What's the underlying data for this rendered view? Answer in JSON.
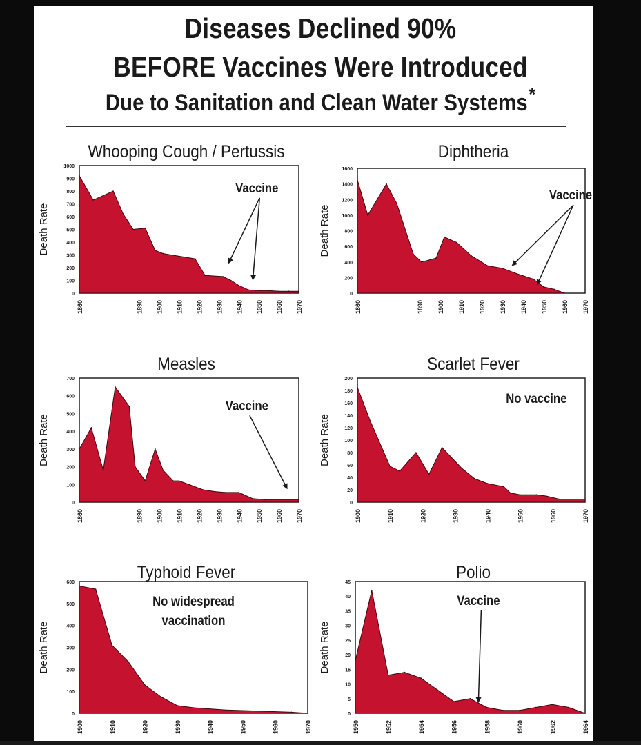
{
  "header": {
    "line1": "Diseases Declined 90%",
    "line2": "BEFORE Vaccines Were Introduced",
    "line3": "Due to Sanitation and Clean Water Systems",
    "asterisk": "*"
  },
  "colors": {
    "fill": "#c4122f",
    "stroke": "#3a0a10",
    "text": "#1a1a1a"
  },
  "chart_data": [
    {
      "type": "area",
      "title": "Whooping Cough / Pertussis",
      "ylabel": "Death Rate",
      "ylim": [
        0,
        1000
      ],
      "yticks": [
        0,
        100,
        200,
        300,
        400,
        500,
        600,
        700,
        800,
        900,
        1000
      ],
      "xlim": [
        1860,
        1970
      ],
      "xticks": [
        1860,
        1890,
        1900,
        1910,
        1920,
        1930,
        1940,
        1950,
        1960,
        1970
      ],
      "x": [
        1860,
        1867,
        1877,
        1882,
        1887,
        1893,
        1898,
        1902,
        1910,
        1918,
        1923,
        1927,
        1932,
        1936,
        1940,
        1945,
        1950,
        1955,
        1960,
        1965,
        1970
      ],
      "y": [
        920,
        730,
        800,
        620,
        500,
        510,
        335,
        310,
        290,
        270,
        140,
        135,
        130,
        100,
        60,
        25,
        20,
        20,
        15,
        15,
        15
      ],
      "annotation": {
        "text": "Vaccine",
        "x": 1949,
        "y": 790,
        "arrows": [
          [
            1935,
            240
          ],
          [
            1947,
            110
          ]
        ]
      }
    },
    {
      "type": "area",
      "title": "Diphtheria",
      "ylabel": "Death Rate",
      "ylim": [
        0,
        1600
      ],
      "yticks": [
        0,
        200,
        400,
        600,
        800,
        1000,
        1200,
        1400,
        1600
      ],
      "xlim": [
        1860,
        1970
      ],
      "xticks": [
        1860,
        1890,
        1900,
        1910,
        1920,
        1930,
        1940,
        1950,
        1960,
        1970
      ],
      "x": [
        1860,
        1865,
        1874,
        1879,
        1887,
        1891,
        1898,
        1902,
        1908,
        1915,
        1923,
        1930,
        1937,
        1945,
        1950,
        1955,
        1958,
        1960
      ],
      "y": [
        1450,
        1000,
        1400,
        1150,
        500,
        400,
        450,
        720,
        650,
        480,
        350,
        320,
        250,
        180,
        80,
        50,
        20,
        0
      ],
      "annotation": {
        "text": "Vaccine",
        "x": 1963,
        "y": 1200,
        "arrows": [
          [
            1935,
            360
          ],
          [
            1947,
            120
          ]
        ]
      }
    },
    {
      "type": "area",
      "title": "Measles",
      "ylabel": "Death Rate",
      "ylim": [
        0,
        700
      ],
      "yticks": [
        0,
        100,
        200,
        300,
        400,
        500,
        600,
        700
      ],
      "xlim": [
        1860,
        1970
      ],
      "xticks": [
        1860,
        1890,
        1900,
        1910,
        1920,
        1930,
        1940,
        1950,
        1960,
        1970
      ],
      "x": [
        1860,
        1866,
        1872,
        1878,
        1885,
        1888,
        1893,
        1898,
        1902,
        1907,
        1910,
        1915,
        1922,
        1928,
        1933,
        1940,
        1947,
        1953,
        1960,
        1970
      ],
      "y": [
        300,
        420,
        180,
        650,
        540,
        200,
        120,
        300,
        180,
        120,
        120,
        100,
        70,
        60,
        55,
        55,
        20,
        15,
        15,
        15
      ],
      "annotation": {
        "text": "Vaccine",
        "x": 1944,
        "y": 520,
        "arrows": [
          [
            1964,
            80
          ]
        ]
      }
    },
    {
      "type": "area",
      "title": "Scarlet Fever",
      "ylabel": "Death Rate",
      "ylim": [
        0,
        200
      ],
      "yticks": [
        0,
        20,
        40,
        60,
        80,
        100,
        120,
        140,
        160,
        180,
        200
      ],
      "xlim": [
        1900,
        1970
      ],
      "xticks": [
        1900,
        1910,
        1920,
        1930,
        1940,
        1950,
        1960,
        1970
      ],
      "x": [
        1900,
        1904,
        1910,
        1913,
        1918,
        1922,
        1926,
        1932,
        1936,
        1940,
        1945,
        1947,
        1950,
        1955,
        1958,
        1962,
        1970
      ],
      "y": [
        185,
        130,
        58,
        50,
        80,
        45,
        88,
        55,
        38,
        30,
        25,
        15,
        12,
        12,
        10,
        5,
        5
      ],
      "annotation": {
        "text": "No vaccine",
        "x": 1955,
        "y": 160
      }
    },
    {
      "type": "area",
      "title": "Typhoid Fever",
      "ylabel": "Death Rate",
      "ylim": [
        0,
        600
      ],
      "yticks": [
        0,
        100,
        200,
        300,
        400,
        500,
        600
      ],
      "xlim": [
        1900,
        1970
      ],
      "xticks": [
        1900,
        1910,
        1920,
        1930,
        1940,
        1950,
        1960,
        1970
      ],
      "x": [
        1900,
        1905,
        1910,
        1915,
        1920,
        1925,
        1930,
        1935,
        1945,
        1955,
        1965,
        1970
      ],
      "y": [
        580,
        565,
        310,
        235,
        130,
        75,
        35,
        25,
        15,
        10,
        5,
        0
      ],
      "annotation": {
        "text": "No widespread",
        "text2": "vaccination",
        "x": 1935,
        "y": 490
      }
    },
    {
      "type": "area",
      "title": "Polio",
      "ylabel": "Death Rate",
      "ylim": [
        0,
        45
      ],
      "yticks": [
        0,
        5,
        10,
        15,
        20,
        25,
        30,
        35,
        40,
        45
      ],
      "xlim": [
        1950,
        1964
      ],
      "xticks": [
        1950,
        1952,
        1954,
        1956,
        1958,
        1960,
        1962,
        1964
      ],
      "x": [
        1950,
        1951,
        1952,
        1953,
        1954,
        1955,
        1956,
        1957,
        1958,
        1959,
        1960,
        1961,
        1962,
        1963,
        1964
      ],
      "y": [
        18,
        42,
        13,
        14,
        12,
        8,
        4,
        5,
        2,
        1,
        1,
        2,
        3,
        2,
        0
      ],
      "annotation": {
        "text": "Vaccine",
        "x": 1957.5,
        "y": 37,
        "arrows": [
          [
            1957.5,
            4
          ]
        ]
      }
    }
  ]
}
